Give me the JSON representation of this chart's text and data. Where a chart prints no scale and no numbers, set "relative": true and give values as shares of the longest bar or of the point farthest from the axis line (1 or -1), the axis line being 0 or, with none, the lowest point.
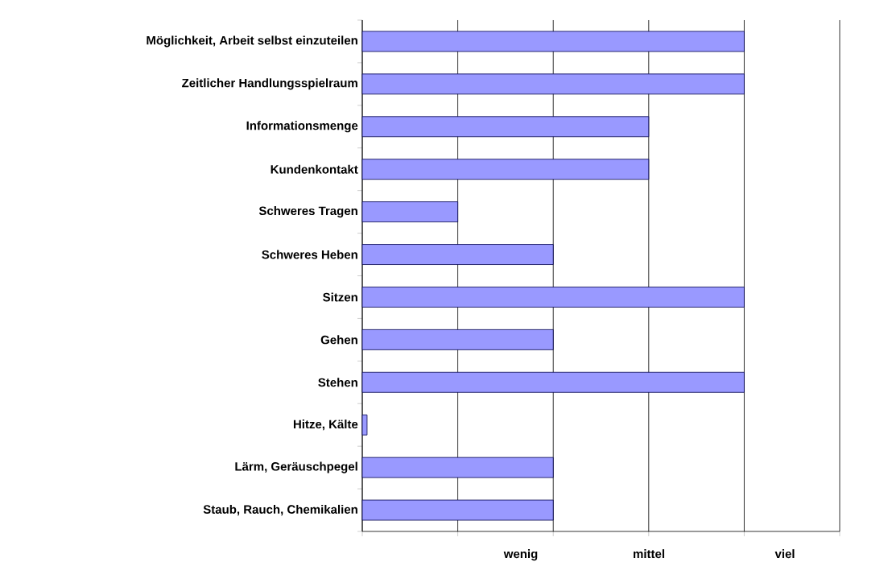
{
  "chart_data": {
    "type": "bar",
    "orientation": "horizontal",
    "relative": true,
    "categories": [
      "Möglichkeit, Arbeit selbst einzuteilen",
      "Zeitlicher Handlungsspielraum",
      "Informationsmenge",
      "Kundenkontakt",
      "Schweres Tragen",
      "Schweres Heben",
      "Sitzen",
      "Gehen",
      "Stehen",
      "Hitze, Kälte",
      "Lärm, Geräuschpegel",
      "Staub, Rauch, Chemikalien"
    ],
    "values": [
      1,
      1,
      0.75,
      0.75,
      0.25,
      0.5,
      1,
      0.5,
      1,
      0.0125,
      0.5,
      0.5
    ],
    "color": "#9999ff",
    "annotations": [
      "wenig",
      "mittel",
      "viel"
    ],
    "grid": "x"
  }
}
